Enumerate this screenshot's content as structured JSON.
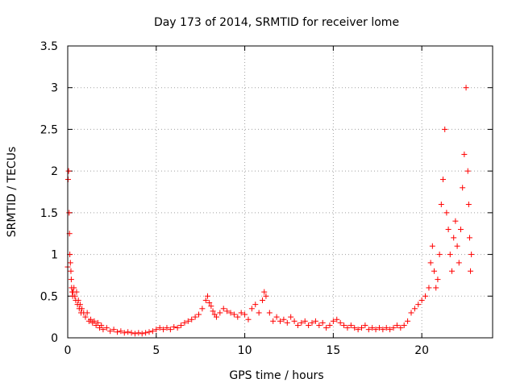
{
  "chart_data": {
    "type": "scatter",
    "title": "Day 173 of 2014, SRMTID for receiver lome",
    "xlabel": "GPS time / hours",
    "ylabel": "SRMTID / TECUs",
    "xlim": [
      0,
      24
    ],
    "ylim": [
      0,
      3.5
    ],
    "grid": true,
    "marker": "+",
    "color": "#ff0000",
    "x_ticks": [
      0,
      5,
      10,
      15,
      20
    ],
    "x_tick_labels": [
      "0",
      "5",
      "10",
      "15",
      "20"
    ],
    "y_ticks": [
      0,
      0.5,
      1,
      1.5,
      2,
      2.5,
      3,
      3.5
    ],
    "y_tick_labels": [
      "0",
      "0.5",
      "1",
      "1.5",
      "2",
      "2.5",
      "3",
      "3.5"
    ],
    "series": [
      {
        "name": "SRMTID",
        "x": [
          0.0,
          0.02,
          0.05,
          0.08,
          0.1,
          0.12,
          0.15,
          0.18,
          0.2,
          0.22,
          0.25,
          0.28,
          0.3,
          0.35,
          0.4,
          0.45,
          0.5,
          0.55,
          0.6,
          0.65,
          0.7,
          0.75,
          0.8,
          0.9,
          1.0,
          1.1,
          1.2,
          1.3,
          1.4,
          1.5,
          1.6,
          1.7,
          1.8,
          1.9,
          2.0,
          2.2,
          2.4,
          2.6,
          2.8,
          3.0,
          3.2,
          3.4,
          3.6,
          3.8,
          4.0,
          4.2,
          4.4,
          4.6,
          4.8,
          5.0,
          5.2,
          5.4,
          5.6,
          5.8,
          6.0,
          6.2,
          6.4,
          6.6,
          6.8,
          7.0,
          7.2,
          7.4,
          7.6,
          7.8,
          7.9,
          8.0,
          8.1,
          8.2,
          8.3,
          8.4,
          8.6,
          8.8,
          9.0,
          9.2,
          9.4,
          9.6,
          9.8,
          10.0,
          10.2,
          10.4,
          10.6,
          10.8,
          11.0,
          11.1,
          11.2,
          11.4,
          11.6,
          11.8,
          12.0,
          12.2,
          12.4,
          12.6,
          12.8,
          13.0,
          13.2,
          13.4,
          13.6,
          13.8,
          14.0,
          14.2,
          14.4,
          14.6,
          14.8,
          15.0,
          15.2,
          15.4,
          15.6,
          15.8,
          16.0,
          16.2,
          16.4,
          16.6,
          16.8,
          17.0,
          17.2,
          17.4,
          17.6,
          17.8,
          18.0,
          18.2,
          18.4,
          18.6,
          18.8,
          19.0,
          19.2,
          19.4,
          19.6,
          19.8,
          20.0,
          20.2,
          20.4,
          20.5,
          20.6,
          20.7,
          20.8,
          20.9,
          21.0,
          21.1,
          21.2,
          21.3,
          21.4,
          21.5,
          21.6,
          21.7,
          21.8,
          21.9,
          22.0,
          22.1,
          22.2,
          22.3,
          22.4,
          22.5,
          22.6,
          22.65,
          22.7,
          22.75,
          22.8
        ],
        "y": [
          0.85,
          1.9,
          2.0,
          1.5,
          1.25,
          1.0,
          0.9,
          0.8,
          0.7,
          0.6,
          0.55,
          0.5,
          0.55,
          0.6,
          0.5,
          0.45,
          0.55,
          0.4,
          0.45,
          0.35,
          0.4,
          0.3,
          0.35,
          0.3,
          0.25,
          0.3,
          0.2,
          0.22,
          0.18,
          0.2,
          0.15,
          0.18,
          0.12,
          0.15,
          0.1,
          0.12,
          0.08,
          0.1,
          0.07,
          0.08,
          0.06,
          0.07,
          0.06,
          0.05,
          0.06,
          0.05,
          0.06,
          0.07,
          0.08,
          0.1,
          0.12,
          0.1,
          0.12,
          0.1,
          0.13,
          0.12,
          0.15,
          0.18,
          0.2,
          0.22,
          0.25,
          0.28,
          0.35,
          0.45,
          0.5,
          0.42,
          0.38,
          0.32,
          0.28,
          0.25,
          0.3,
          0.35,
          0.32,
          0.3,
          0.28,
          0.25,
          0.3,
          0.28,
          0.22,
          0.35,
          0.4,
          0.3,
          0.45,
          0.55,
          0.5,
          0.3,
          0.2,
          0.25,
          0.2,
          0.22,
          0.18,
          0.25,
          0.2,
          0.15,
          0.18,
          0.2,
          0.15,
          0.18,
          0.2,
          0.15,
          0.18,
          0.12,
          0.15,
          0.2,
          0.22,
          0.18,
          0.15,
          0.12,
          0.15,
          0.12,
          0.1,
          0.12,
          0.15,
          0.1,
          0.12,
          0.1,
          0.12,
          0.1,
          0.12,
          0.1,
          0.12,
          0.15,
          0.12,
          0.15,
          0.2,
          0.3,
          0.35,
          0.4,
          0.45,
          0.5,
          0.6,
          0.9,
          1.1,
          0.8,
          0.6,
          0.7,
          1.0,
          1.6,
          1.9,
          2.5,
          1.5,
          1.3,
          1.0,
          0.8,
          1.2,
          1.4,
          1.1,
          0.9,
          1.3,
          1.8,
          2.2,
          3.0,
          2.0,
          1.6,
          1.2,
          0.8,
          1.0
        ]
      }
    ]
  }
}
